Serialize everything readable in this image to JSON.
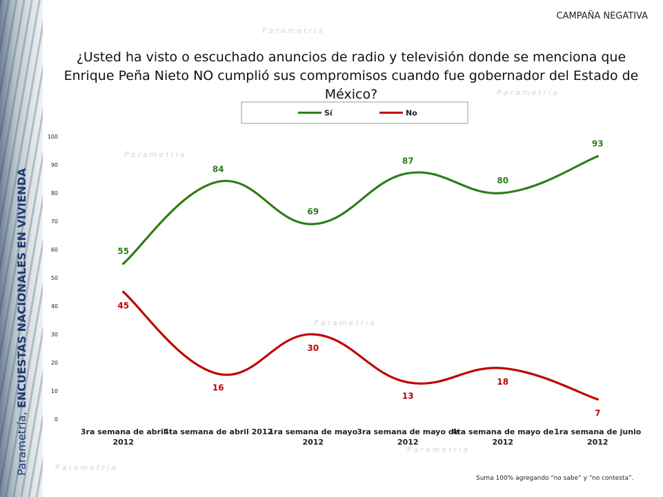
{
  "header_tag": "CAMPAÑA NEGATIVA",
  "question": "¿Usted ha visto o escuchado anuncios de radio y televisión donde se menciona que Enrique Peña Nieto NO cumplió sus compromisos cuando fue gobernador del Estado de México?",
  "side_label": {
    "source": "Parametría, ",
    "bold": "ENCUESTAS NACIONALES EN VIVIENDA"
  },
  "footnote": "Suma 100%  agregando “no sabe” y “no contesta”.",
  "watermark": "Parametría",
  "chart_data": {
    "type": "line",
    "title": "",
    "xlabel": "",
    "ylabel": "",
    "ylim": [
      0,
      100
    ],
    "yticks": [
      0,
      10,
      20,
      30,
      40,
      50,
      60,
      70,
      80,
      90,
      100
    ],
    "grid": false,
    "smooth": true,
    "legend_position": "top-center",
    "categories": [
      [
        "3ra semana de abril",
        "2012"
      ],
      [
        "4ta semana de abril 2012"
      ],
      [
        "1ra semana de mayo",
        "2012"
      ],
      [
        "3ra semana de mayo de",
        "2012"
      ],
      [
        "4ta semana de mayo de",
        "2012"
      ],
      [
        "1ra semana de junio",
        "2012"
      ]
    ],
    "series": [
      {
        "name": "Sí",
        "color": "#2e7d18",
        "values": [
          55,
          84,
          69,
          87,
          80,
          93
        ]
      },
      {
        "name": "No",
        "color": "#c00000",
        "values": [
          45,
          16,
          30,
          13,
          18,
          7
        ]
      }
    ]
  }
}
